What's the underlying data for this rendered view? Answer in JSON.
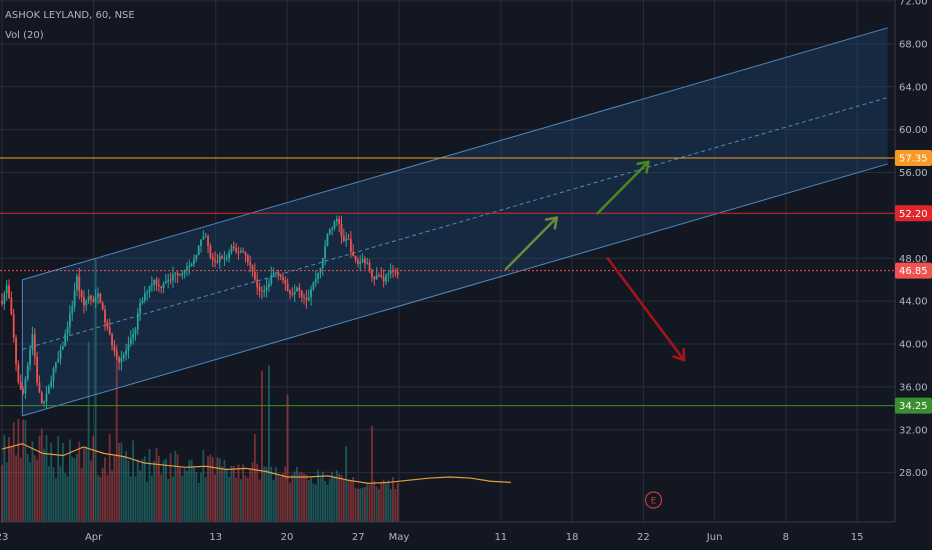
{
  "header": {
    "title": "ASHOK LEYLAND, 60, NSE",
    "indicator": "Vol (20)"
  },
  "colors": {
    "background": "#131722",
    "grid": "#2a2e39",
    "axis_text": "#b2b5be",
    "up": "#26a69a",
    "down": "#ef5350",
    "channel_fill": "#1e4a7a",
    "channel_line": "#4f88c0",
    "resistance_orange": "#f59b23",
    "resistance_red": "#e0262b",
    "current_price": "#ef5350",
    "support_green": "#3a8f2f",
    "arrow_green": "#4a8a1a",
    "arrow_red": "#a8141b",
    "arrow_olive": "#6c8a3a",
    "vol_ma": "#e89b41",
    "event_marker": "#c43b3b"
  },
  "markers": {
    "event_label": "E"
  },
  "chart_data": {
    "type": "candlestick",
    "title": "ASHOK LEYLAND, 60, NSE",
    "xlabel": "",
    "ylabel": "",
    "ylim": [
      24,
      72
    ],
    "y_ticks": [
      {
        "value": 72,
        "label": "72.00"
      },
      {
        "value": 68,
        "label": "68.00"
      },
      {
        "value": 64,
        "label": "64.00"
      },
      {
        "value": 60,
        "label": "60.00"
      },
      {
        "value": 56,
        "label": "56.00"
      },
      {
        "value": 48,
        "label": "48.00"
      },
      {
        "value": 44,
        "label": "44.00"
      },
      {
        "value": 40,
        "label": "40.00"
      },
      {
        "value": 36,
        "label": "36.00"
      },
      {
        "value": 32,
        "label": "32.00"
      },
      {
        "value": 28,
        "label": "28.00"
      }
    ],
    "x_ticks": [
      {
        "day": 0,
        "label": "23"
      },
      {
        "day": 9,
        "label": "Apr"
      },
      {
        "day": 21,
        "label": "13"
      },
      {
        "day": 28,
        "label": "20"
      },
      {
        "day": 35,
        "label": "27"
      },
      {
        "day": 39,
        "label": "May"
      },
      {
        "day": 49,
        "label": "11"
      },
      {
        "day": 56,
        "label": "18"
      },
      {
        "day": 63,
        "label": "22"
      },
      {
        "day": 70,
        "label": "Jun"
      },
      {
        "day": 77,
        "label": "8"
      },
      {
        "day": 84,
        "label": "15"
      }
    ],
    "price_lines": [
      {
        "name": "resistance_orange",
        "value": 57.35,
        "label": "57.35"
      },
      {
        "name": "resistance_red",
        "value": 52.2,
        "label": "52.20"
      },
      {
        "name": "current_price",
        "value": 46.85,
        "label": "46.85"
      },
      {
        "name": "support_green",
        "value": 34.25,
        "label": "34.25"
      }
    ],
    "channel": {
      "start_day": 2,
      "end_day": 87,
      "upper": [
        46.0,
        69.5
      ],
      "middle": [
        39.5,
        63.0
      ],
      "lower": [
        33.3,
        56.8
      ]
    },
    "arrows": [
      {
        "color": "arrow_olive",
        "from": {
          "day": 49.5,
          "price": 47.0
        },
        "to": {
          "day": 54.5,
          "price": 51.8
        }
      },
      {
        "color": "arrow_green",
        "from": {
          "day": 58.5,
          "price": 52.2
        },
        "to": {
          "day": 63.5,
          "price": 57.0
        }
      },
      {
        "color": "arrow_red",
        "from": {
          "day": 59.5,
          "price": 48.0
        },
        "to": {
          "day": 67.0,
          "price": 38.5
        }
      }
    ],
    "event": {
      "day": 64,
      "label": "E"
    },
    "series": [
      {
        "name": "Price",
        "kind": "close_path",
        "points": [
          [
            0,
            44
          ],
          [
            0.5,
            45.5
          ],
          [
            1,
            42
          ],
          [
            1.5,
            37
          ],
          [
            2,
            35
          ],
          [
            2.5,
            38
          ],
          [
            3,
            41
          ],
          [
            3.5,
            36
          ],
          [
            4,
            34.2
          ],
          [
            4.5,
            35.5
          ],
          [
            5,
            37.5
          ],
          [
            5.5,
            38.5
          ],
          [
            6,
            40
          ],
          [
            6.5,
            42
          ],
          [
            7,
            44
          ],
          [
            7.3,
            46.5
          ],
          [
            7.6,
            45
          ],
          [
            8,
            43.5
          ],
          [
            8.5,
            44.5
          ],
          [
            9,
            43.8
          ],
          [
            9.5,
            44.8
          ],
          [
            10,
            42.5
          ],
          [
            10.5,
            41
          ],
          [
            11,
            39.5
          ],
          [
            11.5,
            38.5
          ],
          [
            12,
            39
          ],
          [
            12.5,
            40
          ],
          [
            13,
            41
          ],
          [
            13.5,
            43.5
          ],
          [
            14,
            44.5
          ],
          [
            14.5,
            45.5
          ],
          [
            15,
            46
          ],
          [
            15.5,
            45.2
          ],
          [
            16,
            46
          ],
          [
            16.5,
            45.8
          ],
          [
            17,
            46.8
          ],
          [
            17.5,
            46.5
          ],
          [
            18,
            47.2
          ],
          [
            18.5,
            47
          ],
          [
            19,
            48.3
          ],
          [
            19.5,
            49.5
          ],
          [
            20,
            50
          ],
          [
            20.5,
            48
          ],
          [
            21,
            47.5
          ],
          [
            21.5,
            48.2
          ],
          [
            22,
            47.8
          ],
          [
            22.5,
            49
          ],
          [
            23,
            48.5
          ],
          [
            23.5,
            48.8
          ],
          [
            24,
            48.2
          ],
          [
            24.5,
            47
          ],
          [
            25,
            45.5
          ],
          [
            25.5,
            44.8
          ],
          [
            26,
            45.2
          ],
          [
            26.5,
            46.5
          ],
          [
            27,
            46.8
          ],
          [
            27.5,
            46.2
          ],
          [
            28,
            45
          ],
          [
            28.5,
            44.8
          ],
          [
            29,
            45.5
          ],
          [
            29.5,
            44.5
          ],
          [
            30,
            44.2
          ],
          [
            30.5,
            45.5
          ],
          [
            31,
            46.5
          ],
          [
            31.5,
            47.8
          ],
          [
            32,
            50.5
          ],
          [
            32.5,
            51
          ],
          [
            33,
            51.8
          ],
          [
            33.5,
            49.5
          ],
          [
            34,
            49.8
          ],
          [
            34.5,
            48
          ],
          [
            35,
            47.5
          ],
          [
            35.5,
            48
          ],
          [
            36,
            47.2
          ],
          [
            36.5,
            46.2
          ],
          [
            37,
            46.5
          ],
          [
            37.5,
            46
          ],
          [
            38,
            46.8
          ],
          [
            38.5,
            46.5
          ],
          [
            39,
            46.8
          ]
        ]
      },
      {
        "name": "Volume MA",
        "kind": "volume_ma",
        "points": [
          [
            0,
            30.2
          ],
          [
            2,
            30.7
          ],
          [
            4,
            29.8
          ],
          [
            6,
            29.6
          ],
          [
            8,
            30.4
          ],
          [
            10,
            29.8
          ],
          [
            12,
            29.5
          ],
          [
            14,
            28.9
          ],
          [
            16,
            28.7
          ],
          [
            18,
            28.5
          ],
          [
            20,
            28.6
          ],
          [
            22,
            28.3
          ],
          [
            24,
            28.4
          ],
          [
            26,
            28.1
          ],
          [
            28,
            27.6
          ],
          [
            30,
            27.6
          ],
          [
            32,
            27.7
          ],
          [
            34,
            27.3
          ],
          [
            36,
            27.0
          ],
          [
            38,
            27.1
          ],
          [
            40,
            27.3
          ],
          [
            42,
            27.5
          ],
          [
            44,
            27.6
          ],
          [
            46,
            27.5
          ],
          [
            48,
            27.2
          ],
          [
            50,
            27.1
          ]
        ]
      }
    ]
  }
}
